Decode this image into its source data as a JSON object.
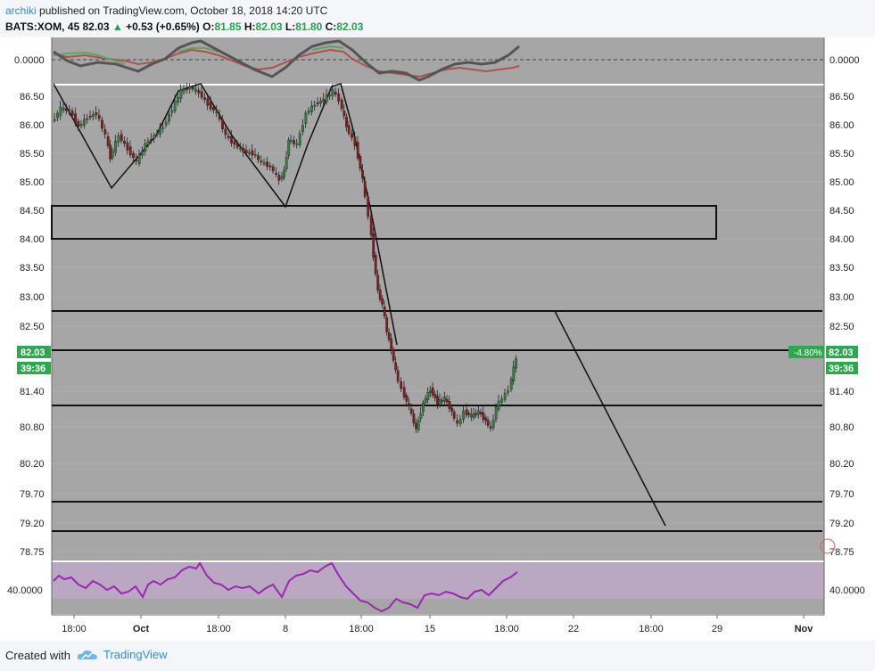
{
  "header": {
    "author": "archiki",
    "published_text": "published on TradingView.com, October 18, 2018 14:20 UTC",
    "symbol": "BATS:XOM, 45",
    "last": "82.03",
    "change": "+0.53 (+0.65%)",
    "open_label": "O:",
    "open": "81.85",
    "high_label": "H:",
    "high": "82.03",
    "low_label": "L:",
    "low": "81.80",
    "close_label": "C:",
    "close": "82.03"
  },
  "footer": {
    "created_with": "Created with",
    "brand": "TradingView"
  },
  "colors": {
    "up": "#2e8540",
    "down": "#8b1a1a",
    "accent": "#2ea84f",
    "rsi": "#9c27b0",
    "oscillator_fast": "#555555",
    "oscillator_slow_up": "#5fa35f",
    "oscillator_slow_down": "#b05050"
  },
  "oscillator": {
    "zero_label_left": "0.0000",
    "zero_label_right": "0.0000"
  },
  "rsi": {
    "level_label_left": "40.0000",
    "level_label_right": "40.0000"
  },
  "price_badge": {
    "price": "82.03",
    "countdown": "39:36",
    "change_pct": "-4.80%"
  },
  "chart_data": {
    "type": "candlestick",
    "price_axis_ticks": [
      "86.50",
      "86.00",
      "85.50",
      "85.00",
      "84.50",
      "84.00",
      "83.50",
      "83.00",
      "82.50",
      "81.40",
      "80.80",
      "80.20",
      "79.70",
      "79.20",
      "78.75"
    ],
    "time_axis_labels": [
      "18:00",
      "Oct",
      "18:00",
      "8",
      "18:00",
      "15",
      "18:00",
      "22",
      "18:00",
      "29",
      "Nov"
    ],
    "horizontal_levels": [
      84.57,
      84.0,
      82.74,
      82.05,
      81.13,
      79.55,
      79.05
    ],
    "price_range": [
      78.6,
      86.75
    ]
  }
}
